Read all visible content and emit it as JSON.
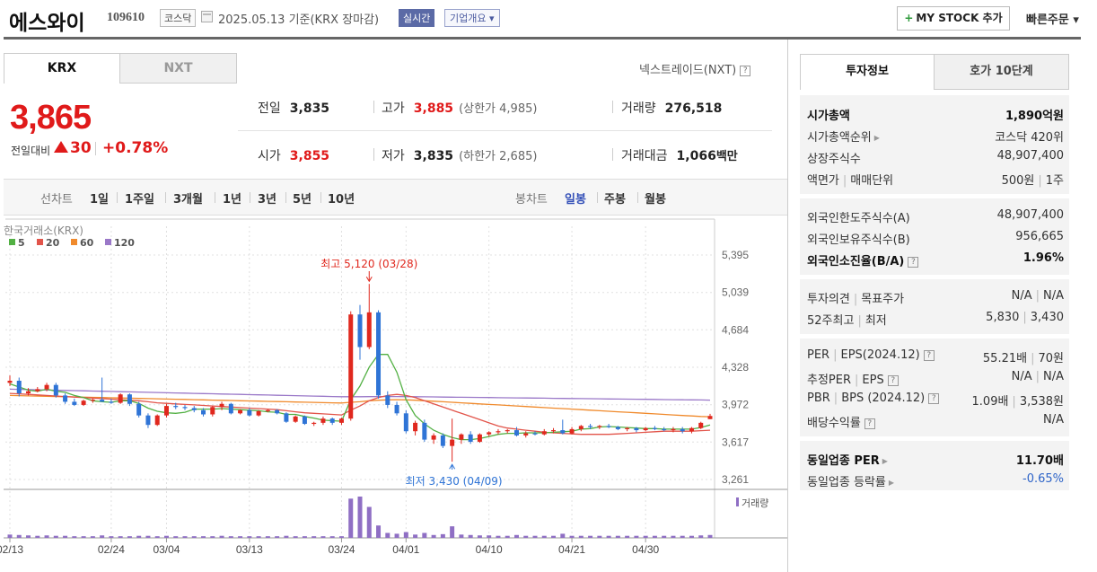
{
  "header": {
    "title": "에스와이",
    "code": "109610",
    "market": "코스닥",
    "date": "2025.05.13  기준(KRX 장마감)",
    "realtime": "실시간",
    "company_info": "기업개요 ▾",
    "mystock": "MY STOCK 추가",
    "quick_order": "빠른주문 ▾"
  },
  "tabs": {
    "krx": "KRX",
    "nxt": "NXT"
  },
  "nextrade": "넥스트레이드(NXT)",
  "price": {
    "current": "3,865",
    "prev_label": "전일대비",
    "change": "30",
    "change_pct": "+0.78%"
  },
  "quote": {
    "prev_label": "전일",
    "prev": "3,835",
    "high_label": "고가",
    "high": "3,885",
    "upper_limit": "(상한가 4,985)",
    "volume_label": "거래량",
    "volume": "276,518",
    "open_label": "시가",
    "open": "3,855",
    "low_label": "저가",
    "low": "3,835",
    "lower_limit": "(하한가 2,685)",
    "amount_label": "거래대금",
    "amount": "1,066",
    "amount_unit": "백만"
  },
  "periods": {
    "line_label": "선차트",
    "line_items": [
      "1일",
      "1주일",
      "3개월",
      "1년",
      "3년",
      "5년",
      "10년"
    ],
    "candle_label": "봉차트",
    "candle_items": [
      "일봉",
      "주봉",
      "월봉"
    ],
    "candle_selected": "일봉"
  },
  "chart_data": {
    "type": "candlestick",
    "source_label": "한국거래소(KRX)",
    "legend": [
      {
        "name": "5",
        "color": "#52b043"
      },
      {
        "name": "20",
        "color": "#e2544a"
      },
      {
        "name": "60",
        "color": "#f08a2c"
      },
      {
        "name": "120",
        "color": "#9a78c8"
      }
    ],
    "y_ticks": [
      "5,395",
      "5,039",
      "4,684",
      "4,328",
      "3,972",
      "3,617",
      "3,261"
    ],
    "ylim": [
      3261,
      5395
    ],
    "x_ticks": [
      "02/13",
      "02/24",
      "03/04",
      "03/13",
      "03/24",
      "04/01",
      "04/10",
      "04/21",
      "04/30"
    ],
    "high_annotation": "최고 5,120 (03/28)",
    "low_annotation": "최저 3,430 (04/09)",
    "volume_label": "거래량",
    "candles": [
      [
        4180,
        4250,
        4150,
        4200
      ],
      [
        4200,
        4230,
        4050,
        4080
      ],
      [
        4080,
        4130,
        4060,
        4100
      ],
      [
        4100,
        4140,
        4090,
        4120
      ],
      [
        4120,
        4180,
        4100,
        4160
      ],
      [
        4160,
        4180,
        4040,
        4060
      ],
      [
        4060,
        4080,
        3980,
        4000
      ],
      [
        4000,
        4030,
        3960,
        3970
      ],
      [
        3970,
        4020,
        3960,
        4010
      ],
      [
        4010,
        4030,
        3990,
        4020
      ],
      [
        4020,
        4230,
        4000,
        4000
      ],
      [
        4000,
        4030,
        3980,
        3990
      ],
      [
        3990,
        4080,
        3980,
        4070
      ],
      [
        4070,
        4080,
        3960,
        3980
      ],
      [
        3980,
        4000,
        3850,
        3870
      ],
      [
        3870,
        3890,
        3750,
        3780
      ],
      [
        3780,
        3880,
        3770,
        3870
      ],
      [
        3870,
        3980,
        3850,
        3960
      ],
      [
        3960,
        3990,
        3930,
        3950
      ],
      [
        3950,
        3970,
        3920,
        3940
      ],
      [
        3940,
        3960,
        3900,
        3920
      ],
      [
        3920,
        3940,
        3860,
        3880
      ],
      [
        3880,
        3960,
        3860,
        3950
      ],
      [
        3950,
        4000,
        3920,
        3980
      ],
      [
        3980,
        3990,
        3880,
        3890
      ],
      [
        3890,
        3930,
        3880,
        3920
      ],
      [
        3920,
        3940,
        3860,
        3870
      ],
      [
        3870,
        3920,
        3860,
        3910
      ],
      [
        3910,
        3930,
        3900,
        3920
      ],
      [
        3920,
        3930,
        3880,
        3890
      ],
      [
        3890,
        3900,
        3800,
        3810
      ],
      [
        3810,
        3870,
        3800,
        3860
      ],
      [
        3860,
        3870,
        3780,
        3790
      ],
      [
        3790,
        3810,
        3770,
        3800
      ],
      [
        3800,
        3860,
        3780,
        3840
      ],
      [
        3840,
        3850,
        3780,
        3800
      ],
      [
        3800,
        3850,
        3780,
        3840
      ],
      [
        3840,
        4860,
        3820,
        4830
      ],
      [
        4830,
        4920,
        4400,
        4520
      ],
      [
        4520,
        5120,
        4500,
        4850
      ],
      [
        4850,
        4870,
        4030,
        4060
      ],
      [
        4060,
        4100,
        3940,
        3970
      ],
      [
        3970,
        4000,
        3870,
        3890
      ],
      [
        3890,
        3920,
        3700,
        3720
      ],
      [
        3720,
        3820,
        3680,
        3800
      ],
      [
        3800,
        3830,
        3620,
        3640
      ],
      [
        3640,
        3700,
        3600,
        3680
      ],
      [
        3680,
        3700,
        3560,
        3580
      ],
      [
        3580,
        3840,
        3430,
        3640
      ],
      [
        3640,
        3700,
        3600,
        3690
      ],
      [
        3690,
        3720,
        3600,
        3620
      ],
      [
        3620,
        3700,
        3610,
        3690
      ],
      [
        3690,
        3720,
        3670,
        3710
      ],
      [
        3710,
        3740,
        3690,
        3720
      ],
      [
        3720,
        3740,
        3700,
        3730
      ],
      [
        3730,
        3760,
        3670,
        3680
      ],
      [
        3680,
        3720,
        3660,
        3700
      ],
      [
        3700,
        3720,
        3680,
        3690
      ],
      [
        3690,
        3740,
        3680,
        3720
      ],
      [
        3720,
        3750,
        3700,
        3730
      ],
      [
        3730,
        3830,
        3690,
        3700
      ],
      [
        3700,
        3760,
        3690,
        3740
      ],
      [
        3740,
        3780,
        3720,
        3770
      ],
      [
        3770,
        3790,
        3740,
        3760
      ],
      [
        3760,
        3780,
        3740,
        3770
      ],
      [
        3770,
        3790,
        3750,
        3760
      ],
      [
        3760,
        3770,
        3730,
        3740
      ],
      [
        3740,
        3760,
        3720,
        3750
      ],
      [
        3750,
        3760,
        3710,
        3730
      ],
      [
        3730,
        3760,
        3720,
        3750
      ],
      [
        3750,
        3770,
        3730,
        3740
      ],
      [
        3740,
        3760,
        3720,
        3730
      ],
      [
        3730,
        3760,
        3710,
        3740
      ],
      [
        3740,
        3760,
        3700,
        3720
      ],
      [
        3720,
        3760,
        3700,
        3750
      ],
      [
        3750,
        3810,
        3740,
        3800
      ],
      [
        3835,
        3885,
        3835,
        3865
      ]
    ],
    "volumes": [
      8,
      7,
      6,
      5,
      6,
      5,
      5,
      4,
      4,
      4,
      6,
      4,
      4,
      4,
      5,
      5,
      4,
      5,
      4,
      4,
      4,
      4,
      4,
      5,
      4,
      4,
      4,
      4,
      4,
      4,
      5,
      4,
      4,
      4,
      4,
      4,
      4,
      95,
      100,
      75,
      30,
      12,
      10,
      14,
      8,
      12,
      7,
      9,
      28,
      8,
      7,
      6,
      6,
      5,
      5,
      7,
      5,
      5,
      5,
      5,
      10,
      5,
      5,
      5,
      5,
      5,
      5,
      5,
      5,
      5,
      5,
      5,
      5,
      5,
      5,
      6,
      7
    ],
    "ma5": [
      4170,
      4140,
      4110,
      4100,
      4120,
      4100,
      4090,
      4060,
      4040,
      4010,
      4000,
      3995,
      4010,
      4010,
      3985,
      3940,
      3910,
      3895,
      3890,
      3900,
      3930,
      3930,
      3930,
      3935,
      3930,
      3925,
      3920,
      3915,
      3905,
      3900,
      3880,
      3880,
      3860,
      3845,
      3825,
      3820,
      3815,
      4020,
      4150,
      4330,
      4450,
      4450,
      4280,
      4020,
      3870,
      3790,
      3730,
      3690,
      3660,
      3640,
      3640,
      3650,
      3670,
      3690,
      3700,
      3700,
      3705,
      3705,
      3705,
      3710,
      3715,
      3720,
      3740,
      3745,
      3760,
      3765,
      3760,
      3755,
      3750,
      3745,
      3745,
      3740,
      3740,
      3740,
      3740,
      3755,
      3780
    ],
    "ma20": [
      4080,
      4075,
      4070,
      4065,
      4060,
      4055,
      4050,
      4045,
      4040,
      4035,
      4030,
      4025,
      4020,
      4015,
      4010,
      4000,
      3990,
      3985,
      3980,
      3975,
      3970,
      3965,
      3960,
      3955,
      3950,
      3945,
      3940,
      3935,
      3930,
      3925,
      3915,
      3905,
      3895,
      3890,
      3885,
      3880,
      3875,
      3920,
      3960,
      4010,
      4040,
      4060,
      4070,
      4060,
      4040,
      4010,
      3980,
      3950,
      3920,
      3890,
      3860,
      3830,
      3800,
      3770,
      3750,
      3740,
      3730,
      3720,
      3710,
      3705,
      3700,
      3695,
      3690,
      3690,
      3690,
      3690,
      3695,
      3700,
      3705,
      3710,
      3715,
      3720,
      3720,
      3720,
      3720,
      3725,
      3730
    ],
    "ma60": [
      4060,
      4058,
      4056,
      4054,
      4052,
      4050,
      4048,
      4046,
      4044,
      4042,
      4040,
      4038,
      4036,
      4034,
      4032,
      4030,
      4028,
      4026,
      4024,
      4022,
      4020,
      4018,
      4016,
      4014,
      4012,
      4010,
      4008,
      4006,
      4004,
      4002,
      4000,
      3998,
      3996,
      3994,
      3992,
      3990,
      3988,
      3995,
      4000,
      4010,
      4015,
      4018,
      4020,
      4018,
      4015,
      4010,
      4005,
      4000,
      3995,
      3990,
      3985,
      3980,
      3975,
      3970,
      3965,
      3960,
      3955,
      3950,
      3945,
      3940,
      3935,
      3930,
      3925,
      3920,
      3915,
      3910,
      3905,
      3900,
      3895,
      3890,
      3885,
      3880,
      3875,
      3870,
      3865,
      3860,
      3858
    ],
    "ma120": [
      4120,
      4118,
      4116,
      4114,
      4112,
      4110,
      4108,
      4106,
      4104,
      4102,
      4100,
      4098,
      4096,
      4094,
      4092,
      4090,
      4088,
      4086,
      4084,
      4082,
      4080,
      4078,
      4076,
      4074,
      4072,
      4070,
      4068,
      4066,
      4064,
      4062,
      4060,
      4058,
      4056,
      4054,
      4052,
      4050,
      4048,
      4048,
      4048,
      4049,
      4050,
      4050,
      4050,
      4049,
      4048,
      4047,
      4046,
      4045,
      4044,
      4043,
      4042,
      4041,
      4040,
      4039,
      4038,
      4037,
      4036,
      4035,
      4034,
      4033,
      4032,
      4031,
      4030,
      4029,
      4028,
      4027,
      4026,
      4025,
      4024,
      4023,
      4022,
      4021,
      4020,
      4019,
      4018,
      4017,
      4016
    ]
  },
  "right_tabs": {
    "info": "투자정보",
    "orderbook": "호가 10단계"
  },
  "invest": {
    "group1": [
      {
        "k": "시가총액",
        "v": "1,890억원",
        "bold": true
      },
      {
        "k": "시가총액순위",
        "v": "코스닥 420위",
        "arrow": true
      },
      {
        "k": "상장주식수",
        "v": "48,907,400"
      },
      {
        "k": "액면가",
        "k2": "매매단위",
        "v": "500원",
        "v2": "1주"
      }
    ],
    "group2": [
      {
        "k": "외국인한도주식수(A)",
        "v": "48,907,400"
      },
      {
        "k": "외국인보유주식수(B)",
        "v": "956,665"
      },
      {
        "k": "외국인소진율(B/A)",
        "v": "1.96%",
        "bold": true,
        "q": true
      }
    ],
    "group3": [
      {
        "k": "투자의견",
        "k2": "목표주가",
        "v": "N/A",
        "v2": "N/A"
      },
      {
        "k": "52주최고",
        "k2": "최저",
        "v": "5,830",
        "v2": "3,430"
      }
    ],
    "group4": [
      {
        "k": "PER",
        "k2": "EPS(2024.12)",
        "v": "55.21배",
        "v2": "70원",
        "q": true
      },
      {
        "k": "추정PER",
        "k2": "EPS",
        "v": "N/A",
        "v2": "N/A",
        "q": true
      },
      {
        "k": "PBR",
        "k2": "BPS (2024.12)",
        "v": "1.09배",
        "v2": "3,538원",
        "q": true
      },
      {
        "k": "배당수익률",
        "v": "N/A",
        "q": true
      }
    ],
    "group5": [
      {
        "k": "동일업종 PER",
        "v": "11.70배",
        "bold": true,
        "arrow": true
      },
      {
        "k": "동일업종 등락률",
        "v": "-0.65%",
        "blue": true,
        "arrow": true
      }
    ]
  }
}
